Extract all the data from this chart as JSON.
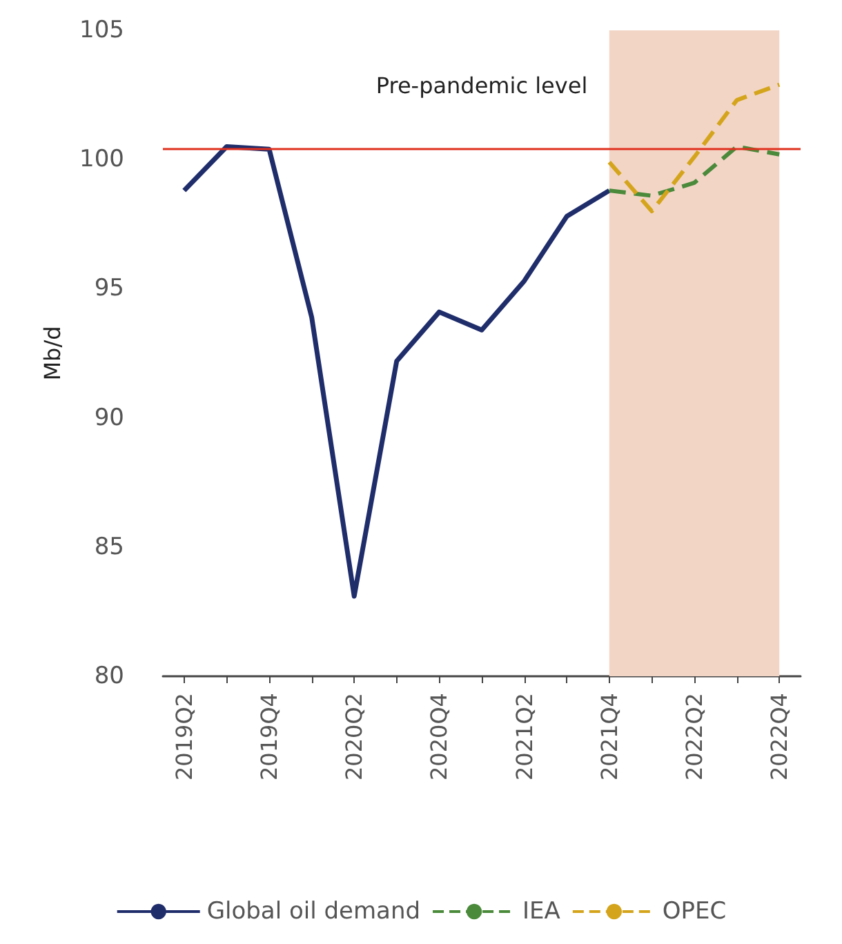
{
  "chart_data": {
    "type": "line",
    "ylabel": "Mb/d",
    "categories": [
      "2019Q2",
      null,
      "2019Q4",
      null,
      "2020Q2",
      null,
      "2020Q4",
      null,
      "2021Q2",
      null,
      "2021Q4",
      null,
      "2022Q2",
      null,
      "2022Q4"
    ],
    "series": [
      {
        "name": "Global oil demand",
        "color": "#1f2d6b",
        "line_style": "solid",
        "values": [
          98.8,
          100.5,
          100.4,
          93.9,
          83.1,
          92.2,
          94.1,
          93.4,
          95.3,
          97.8,
          98.8,
          null,
          null,
          null,
          null
        ]
      },
      {
        "name": "IEA",
        "color": "#4a8a3a",
        "line_style": "dashed",
        "values": [
          null,
          null,
          null,
          null,
          null,
          null,
          null,
          null,
          null,
          null,
          98.8,
          98.6,
          99.1,
          100.5,
          100.2
        ]
      },
      {
        "name": "OPEC",
        "color": "#d4a51c",
        "line_style": "dashed",
        "values": [
          null,
          null,
          null,
          null,
          null,
          null,
          null,
          null,
          null,
          null,
          99.9,
          98.0,
          100.1,
          102.3,
          102.9
        ]
      }
    ],
    "ylim": [
      80,
      105
    ],
    "yticks": [
      80,
      85,
      90,
      95,
      100,
      105
    ],
    "ref_lines": [
      {
        "axis": "y",
        "value": 100.4,
        "label": "Pre-pandemic level",
        "color": "#e0301e"
      }
    ],
    "bands": [
      {
        "axis": "x",
        "from": "2021Q4",
        "to": "2022Q4",
        "color": "#f3d5c6"
      }
    ],
    "grid": false,
    "legend": "bottom",
    "marker": "none"
  }
}
